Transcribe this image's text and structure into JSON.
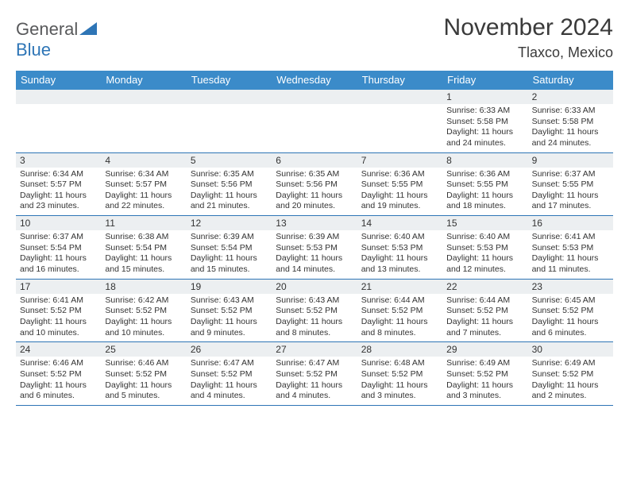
{
  "logo": {
    "word1": "General",
    "word2": "Blue"
  },
  "title": "November 2024",
  "location": "Tlaxco, Mexico",
  "colors": {
    "header_bg": "#3b8bc9",
    "header_text": "#ffffff",
    "border": "#2e75b6",
    "daynum_bg": "#eceff1",
    "text": "#333333",
    "logo_gray": "#58595b",
    "logo_blue": "#2e75b6"
  },
  "day_names": [
    "Sunday",
    "Monday",
    "Tuesday",
    "Wednesday",
    "Thursday",
    "Friday",
    "Saturday"
  ],
  "weeks": [
    [
      {
        "n": "",
        "sr": "",
        "ss": "",
        "dl": ""
      },
      {
        "n": "",
        "sr": "",
        "ss": "",
        "dl": ""
      },
      {
        "n": "",
        "sr": "",
        "ss": "",
        "dl": ""
      },
      {
        "n": "",
        "sr": "",
        "ss": "",
        "dl": ""
      },
      {
        "n": "",
        "sr": "",
        "ss": "",
        "dl": ""
      },
      {
        "n": "1",
        "sr": "Sunrise: 6:33 AM",
        "ss": "Sunset: 5:58 PM",
        "dl": "Daylight: 11 hours and 24 minutes."
      },
      {
        "n": "2",
        "sr": "Sunrise: 6:33 AM",
        "ss": "Sunset: 5:58 PM",
        "dl": "Daylight: 11 hours and 24 minutes."
      }
    ],
    [
      {
        "n": "3",
        "sr": "Sunrise: 6:34 AM",
        "ss": "Sunset: 5:57 PM",
        "dl": "Daylight: 11 hours and 23 minutes."
      },
      {
        "n": "4",
        "sr": "Sunrise: 6:34 AM",
        "ss": "Sunset: 5:57 PM",
        "dl": "Daylight: 11 hours and 22 minutes."
      },
      {
        "n": "5",
        "sr": "Sunrise: 6:35 AM",
        "ss": "Sunset: 5:56 PM",
        "dl": "Daylight: 11 hours and 21 minutes."
      },
      {
        "n": "6",
        "sr": "Sunrise: 6:35 AM",
        "ss": "Sunset: 5:56 PM",
        "dl": "Daylight: 11 hours and 20 minutes."
      },
      {
        "n": "7",
        "sr": "Sunrise: 6:36 AM",
        "ss": "Sunset: 5:55 PM",
        "dl": "Daylight: 11 hours and 19 minutes."
      },
      {
        "n": "8",
        "sr": "Sunrise: 6:36 AM",
        "ss": "Sunset: 5:55 PM",
        "dl": "Daylight: 11 hours and 18 minutes."
      },
      {
        "n": "9",
        "sr": "Sunrise: 6:37 AM",
        "ss": "Sunset: 5:55 PM",
        "dl": "Daylight: 11 hours and 17 minutes."
      }
    ],
    [
      {
        "n": "10",
        "sr": "Sunrise: 6:37 AM",
        "ss": "Sunset: 5:54 PM",
        "dl": "Daylight: 11 hours and 16 minutes."
      },
      {
        "n": "11",
        "sr": "Sunrise: 6:38 AM",
        "ss": "Sunset: 5:54 PM",
        "dl": "Daylight: 11 hours and 15 minutes."
      },
      {
        "n": "12",
        "sr": "Sunrise: 6:39 AM",
        "ss": "Sunset: 5:54 PM",
        "dl": "Daylight: 11 hours and 15 minutes."
      },
      {
        "n": "13",
        "sr": "Sunrise: 6:39 AM",
        "ss": "Sunset: 5:53 PM",
        "dl": "Daylight: 11 hours and 14 minutes."
      },
      {
        "n": "14",
        "sr": "Sunrise: 6:40 AM",
        "ss": "Sunset: 5:53 PM",
        "dl": "Daylight: 11 hours and 13 minutes."
      },
      {
        "n": "15",
        "sr": "Sunrise: 6:40 AM",
        "ss": "Sunset: 5:53 PM",
        "dl": "Daylight: 11 hours and 12 minutes."
      },
      {
        "n": "16",
        "sr": "Sunrise: 6:41 AM",
        "ss": "Sunset: 5:53 PM",
        "dl": "Daylight: 11 hours and 11 minutes."
      }
    ],
    [
      {
        "n": "17",
        "sr": "Sunrise: 6:41 AM",
        "ss": "Sunset: 5:52 PM",
        "dl": "Daylight: 11 hours and 10 minutes."
      },
      {
        "n": "18",
        "sr": "Sunrise: 6:42 AM",
        "ss": "Sunset: 5:52 PM",
        "dl": "Daylight: 11 hours and 10 minutes."
      },
      {
        "n": "19",
        "sr": "Sunrise: 6:43 AM",
        "ss": "Sunset: 5:52 PM",
        "dl": "Daylight: 11 hours and 9 minutes."
      },
      {
        "n": "20",
        "sr": "Sunrise: 6:43 AM",
        "ss": "Sunset: 5:52 PM",
        "dl": "Daylight: 11 hours and 8 minutes."
      },
      {
        "n": "21",
        "sr": "Sunrise: 6:44 AM",
        "ss": "Sunset: 5:52 PM",
        "dl": "Daylight: 11 hours and 8 minutes."
      },
      {
        "n": "22",
        "sr": "Sunrise: 6:44 AM",
        "ss": "Sunset: 5:52 PM",
        "dl": "Daylight: 11 hours and 7 minutes."
      },
      {
        "n": "23",
        "sr": "Sunrise: 6:45 AM",
        "ss": "Sunset: 5:52 PM",
        "dl": "Daylight: 11 hours and 6 minutes."
      }
    ],
    [
      {
        "n": "24",
        "sr": "Sunrise: 6:46 AM",
        "ss": "Sunset: 5:52 PM",
        "dl": "Daylight: 11 hours and 6 minutes."
      },
      {
        "n": "25",
        "sr": "Sunrise: 6:46 AM",
        "ss": "Sunset: 5:52 PM",
        "dl": "Daylight: 11 hours and 5 minutes."
      },
      {
        "n": "26",
        "sr": "Sunrise: 6:47 AM",
        "ss": "Sunset: 5:52 PM",
        "dl": "Daylight: 11 hours and 4 minutes."
      },
      {
        "n": "27",
        "sr": "Sunrise: 6:47 AM",
        "ss": "Sunset: 5:52 PM",
        "dl": "Daylight: 11 hours and 4 minutes."
      },
      {
        "n": "28",
        "sr": "Sunrise: 6:48 AM",
        "ss": "Sunset: 5:52 PM",
        "dl": "Daylight: 11 hours and 3 minutes."
      },
      {
        "n": "29",
        "sr": "Sunrise: 6:49 AM",
        "ss": "Sunset: 5:52 PM",
        "dl": "Daylight: 11 hours and 3 minutes."
      },
      {
        "n": "30",
        "sr": "Sunrise: 6:49 AM",
        "ss": "Sunset: 5:52 PM",
        "dl": "Daylight: 11 hours and 2 minutes."
      }
    ]
  ]
}
